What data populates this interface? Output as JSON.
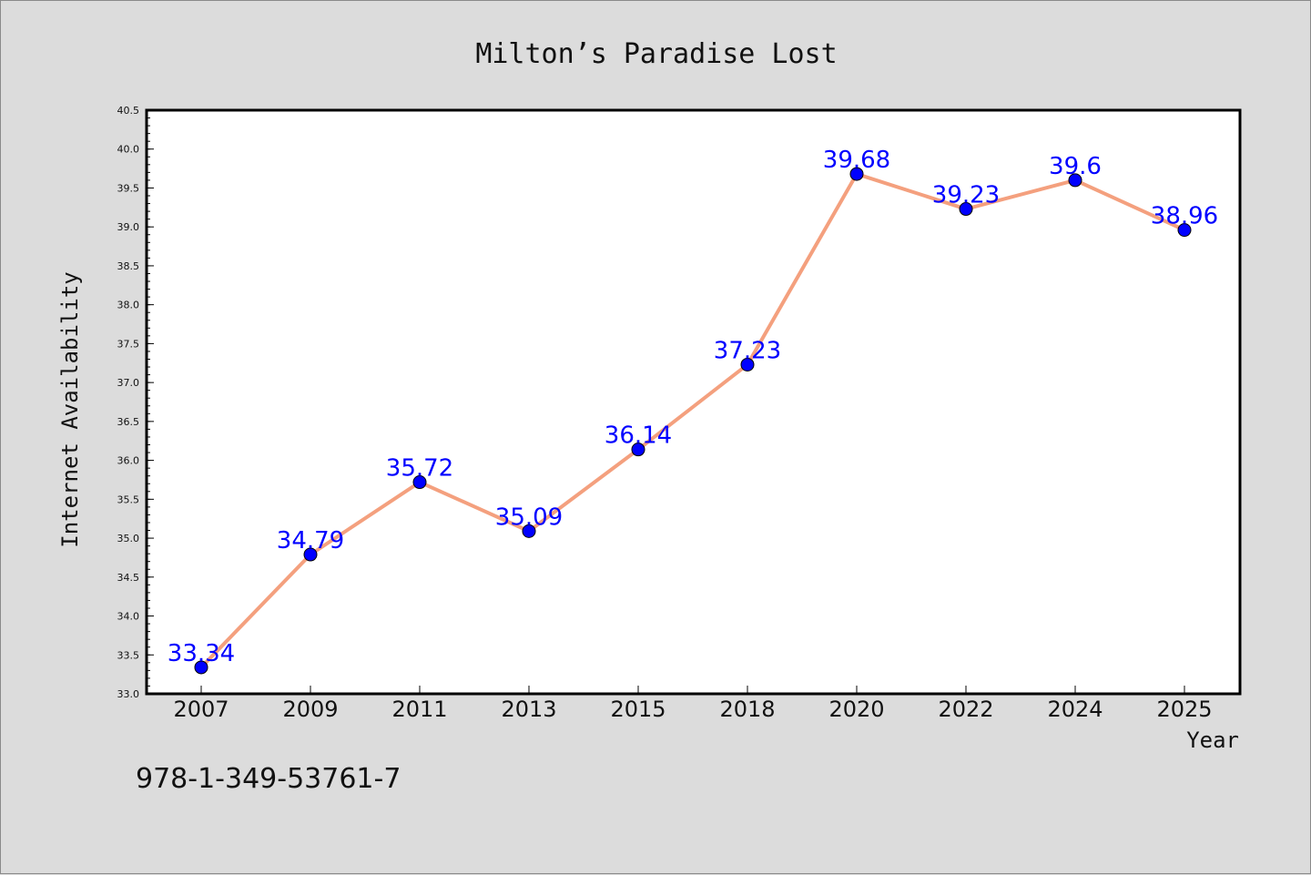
{
  "chart_data": {
    "type": "line",
    "title": "Milton’s Paradise Lost",
    "xlabel": "Year",
    "ylabel": "Internet Availability",
    "categories": [
      "2007",
      "2009",
      "2011",
      "2013",
      "2015",
      "2018",
      "2020",
      "2022",
      "2024",
      "2025"
    ],
    "series": [
      {
        "values": [
          33.34,
          34.79,
          35.72,
          35.09,
          36.14,
          37.23,
          39.68,
          39.23,
          39.6,
          38.96
        ],
        "line_color": "#f4a07e",
        "marker_color": "#0000ff"
      }
    ],
    "data_labels": [
      "33.34",
      "34.79",
      "35.72",
      "35.09",
      "36.14",
      "37.23",
      "39.68",
      "39.23",
      "39.6",
      "38.96"
    ],
    "ylim": [
      33.0,
      40.5
    ],
    "yticks": [
      "33.0",
      "33.5",
      "34.0",
      "34.5",
      "35.0",
      "35.5",
      "36.0",
      "36.5",
      "37.0",
      "37.5",
      "38.0",
      "38.5",
      "39.0",
      "39.5",
      "40.0",
      "40.5"
    ],
    "grid": false,
    "legend": "none"
  },
  "footnote": "978-1-349-53761-7"
}
